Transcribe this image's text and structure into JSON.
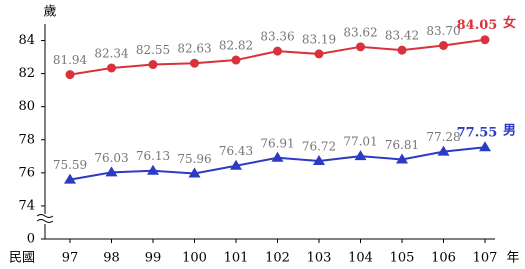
{
  "chart_data": {
    "type": "line",
    "ylabel": "歲",
    "xlabel_left": "民國",
    "xlabel_right": "年",
    "categories": [
      "97",
      "98",
      "99",
      "100",
      "101",
      "102",
      "103",
      "104",
      "105",
      "106",
      "107"
    ],
    "series": [
      {
        "name": "女",
        "color": "#d8323c",
        "marker": "circle",
        "values": [
          81.94,
          82.34,
          82.55,
          82.63,
          82.82,
          83.36,
          83.19,
          83.62,
          83.42,
          83.7,
          84.05
        ],
        "value_labels": [
          "81.94",
          "82.34",
          "82.55",
          "82.63",
          "82.82",
          "83.36",
          "83.19",
          "83.62",
          "83.42",
          "83.70",
          "84.05"
        ]
      },
      {
        "name": "男",
        "color": "#2b3bc4",
        "marker": "triangle",
        "values": [
          75.59,
          76.03,
          76.13,
          75.96,
          76.43,
          76.91,
          76.72,
          77.01,
          76.81,
          77.28,
          77.55
        ],
        "value_labels": [
          "75.59",
          "76.03",
          "76.13",
          "75.96",
          "76.43",
          "76.91",
          "76.72",
          "77.01",
          "76.81",
          "77.28",
          "77.55"
        ]
      }
    ],
    "ylim": [
      72,
      85
    ],
    "yticks": [
      0,
      74,
      76,
      78,
      80,
      82,
      84
    ],
    "axis_break": true,
    "grid": false
  }
}
